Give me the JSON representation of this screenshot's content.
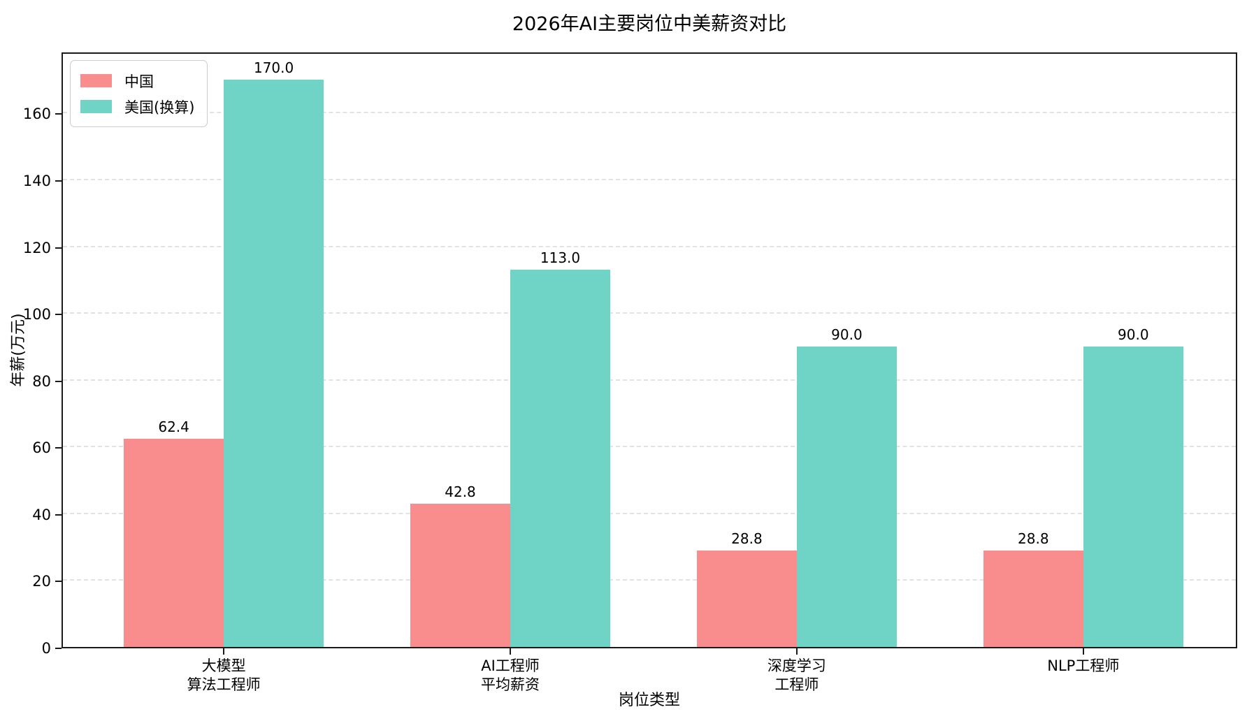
{
  "chart_data": {
    "type": "bar",
    "title": "2026年AI主要岗位中美薪资对比",
    "xlabel": "岗位类型",
    "ylabel": "年薪(万元)",
    "categories": [
      "大模型\n算法工程师",
      "AI工程师\n平均薪资",
      "深度学习\n工程师",
      "NLP工程师"
    ],
    "series": [
      {
        "name": "中国",
        "color": "#f98c8c",
        "values": [
          62.4,
          42.8,
          28.8,
          28.8
        ],
        "value_labels": [
          "62.4",
          "42.8",
          "28.8",
          "28.8"
        ]
      },
      {
        "name": "美国(换算)",
        "color": "#6fd4c6",
        "values": [
          170.0,
          113.0,
          90.0,
          90.0
        ],
        "value_labels": [
          "170.0",
          "113.0",
          "90.0",
          "90.0"
        ]
      }
    ],
    "ylim": [
      0,
      178.5
    ],
    "yticks": [
      0,
      20,
      40,
      60,
      80,
      100,
      120,
      140,
      160
    ],
    "grid": "horizontal dashed",
    "legend_position": "upper-left",
    "colors": {
      "grid": "#e2e2e2",
      "axis": "#1a1a1a",
      "text": "#000000",
      "background": "#ffffff"
    }
  }
}
